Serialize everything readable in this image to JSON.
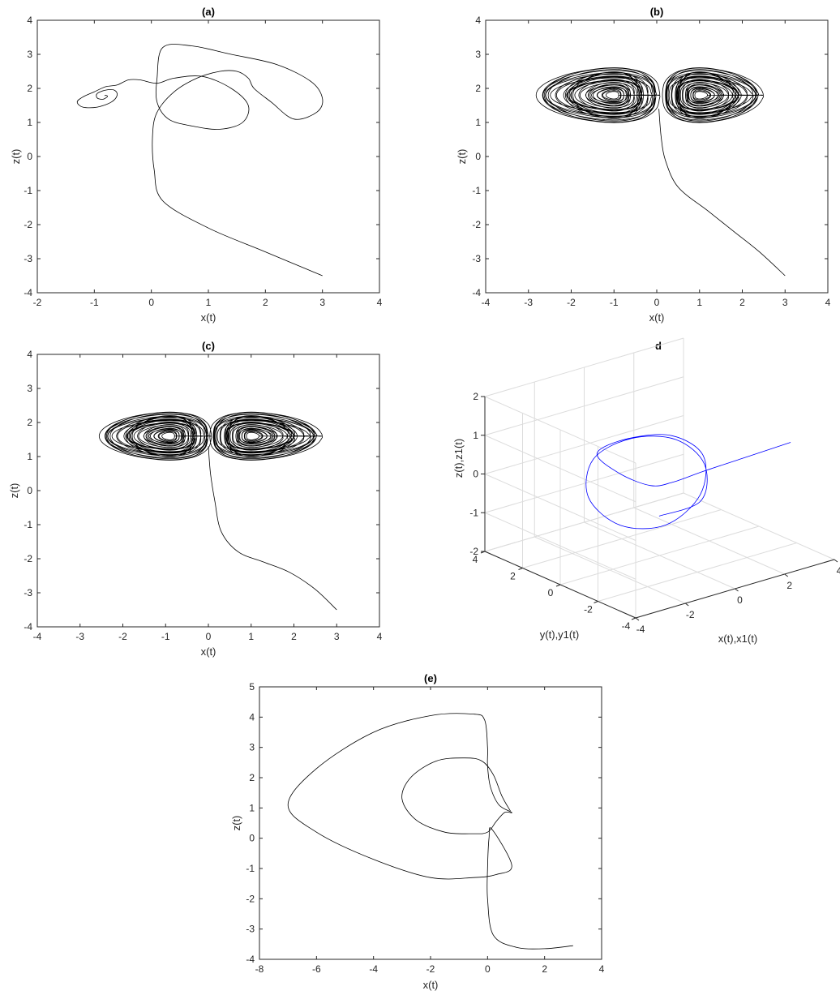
{
  "chart_data": [
    {
      "id": "a",
      "type": "line",
      "title": "(a)",
      "xlabel": "x(t)",
      "ylabel": "z(t)",
      "xlim": [
        -2,
        4
      ],
      "ylim": [
        -4,
        4
      ],
      "xticks": [
        "-2",
        "-1",
        "0",
        "1",
        "2",
        "3",
        "4"
      ],
      "yticks": [
        "-4",
        "-3",
        "-2",
        "-1",
        "0",
        "1",
        "2",
        "3",
        "4"
      ],
      "grid": false,
      "series": [
        {
          "color": "#000000",
          "trajectory": "spiral to focus",
          "x": [
            3.0,
            2.0,
            1.0,
            0.2,
            0.05,
            0.02,
            0.1,
            0.4,
            0.8,
            1.2,
            1.5,
            1.7,
            1.8,
            2.1,
            2.5,
            2.9,
            3.0,
            2.8,
            2.2,
            1.4,
            0.7,
            0.2,
            0.1,
            0.1,
            0.3,
            0.7,
            1.2,
            1.6,
            1.7,
            1.4,
            0.9,
            0.4,
            0.1,
            -0.2,
            -0.4,
            -0.6,
            -0.8,
            -1.0,
            -1.2,
            -1.3,
            -1.2,
            -0.95,
            -0.7,
            -0.6,
            -0.65,
            -0.8,
            -0.95,
            -0.95,
            -0.85,
            -0.77,
            -0.8,
            -0.82
          ],
          "y": [
            -3.5,
            -2.8,
            -2.1,
            -1.3,
            -0.4,
            0.6,
            1.3,
            1.9,
            2.3,
            2.5,
            2.5,
            2.3,
            2.0,
            1.6,
            1.1,
            1.3,
            1.7,
            2.2,
            2.7,
            3.0,
            3.25,
            3.2,
            2.3,
            1.6,
            1.1,
            0.9,
            0.8,
            1.0,
            1.5,
            2.0,
            2.35,
            2.3,
            2.15,
            2.25,
            2.25,
            2.1,
            2.05,
            1.9,
            1.75,
            1.6,
            1.45,
            1.45,
            1.6,
            1.8,
            1.95,
            1.95,
            1.85,
            1.72,
            1.68,
            1.76,
            1.8,
            1.78
          ]
        }
      ]
    },
    {
      "id": "b",
      "type": "line",
      "title": "(b)",
      "xlabel": "x(t)",
      "ylabel": "z(t)",
      "xlim": [
        -4,
        4
      ],
      "ylim": [
        -4,
        4
      ],
      "xticks": [
        "-4",
        "-3",
        "-2",
        "-1",
        "0",
        "1",
        "2",
        "3",
        "4"
      ],
      "yticks": [
        "-4",
        "-3",
        "-2",
        "-1",
        "0",
        "1",
        "2",
        "3",
        "4"
      ],
      "grid": false,
      "series": [
        {
          "color": "#000000",
          "trajectory": "double-scroll attractor",
          "x": [
            3.0,
            2.4,
            1.8,
            1.2,
            0.5,
            0.2,
            0.1,
            0.05
          ],
          "y": [
            -3.5,
            -2.8,
            -2.2,
            -1.6,
            -0.9,
            -0.1,
            0.6,
            1.4
          ],
          "lobes": [
            {
              "cx": -1.0,
              "cy": 1.8,
              "rx_min": 0.3,
              "rx_max": 3.2,
              "ry_min": 0.2,
              "ry_max": 1.6
            },
            {
              "cx": 1.0,
              "cy": 1.8,
              "rx_min": 0.3,
              "rx_max": 2.6,
              "ry_min": 0.2,
              "ry_max": 1.6
            }
          ]
        }
      ]
    },
    {
      "id": "c",
      "type": "line",
      "title": "(c)",
      "xlabel": "x(t)",
      "ylabel": "z(t)",
      "xlim": [
        -4,
        4
      ],
      "ylim": [
        -4,
        4
      ],
      "xticks": [
        "-4",
        "-3",
        "-2",
        "-1",
        "0",
        "1",
        "2",
        "3",
        "4"
      ],
      "yticks": [
        "-4",
        "-3",
        "-2",
        "-1",
        "0",
        "1",
        "2",
        "3",
        "4"
      ],
      "grid": false,
      "series": [
        {
          "color": "#000000",
          "trajectory": "figure-eight attractor",
          "x": [
            3.0,
            2.5,
            1.9,
            1.3,
            0.7,
            0.3,
            0.15,
            0.05,
            0.0
          ],
          "y": [
            -3.5,
            -2.9,
            -2.4,
            -2.1,
            -1.8,
            -1.2,
            -0.3,
            0.5,
            1.3
          ],
          "lobes": [
            {
              "cx": -0.9,
              "cy": 1.6,
              "rx_min": 0.3,
              "rx_max": 2.9,
              "ry_min": 0.2,
              "ry_max": 1.4
            },
            {
              "cx": 1.0,
              "cy": 1.6,
              "rx_min": 0.3,
              "rx_max": 2.9,
              "ry_min": 0.2,
              "ry_max": 1.4
            }
          ]
        }
      ]
    },
    {
      "id": "d",
      "type": "line3d",
      "title": "d",
      "xlabel": "x(t),x1(t)",
      "ylabel": "y(t),y1(t)",
      "zlabel": "z(t),z1(t)",
      "xlim": [
        -4,
        4
      ],
      "ylim": [
        -4,
        4
      ],
      "zlim": [
        -2,
        2
      ],
      "xticks": [
        "-4",
        "-2",
        "0",
        "2",
        "4"
      ],
      "yticks": [
        "-4",
        "-2",
        "0",
        "2",
        "4"
      ],
      "zticks": [
        "-2",
        "-1",
        "0",
        "1",
        "2"
      ],
      "grid": true,
      "series": [
        {
          "color": "#0000ff",
          "trajectory": "3D attractor",
          "x": [
            3.0,
            2.0,
            1.0,
            0.3,
            0.0,
            -0.5,
            -1.0,
            -0.5,
            0.5,
            1.0,
            0.5,
            -0.5,
            -1.2,
            -1.5,
            -1.0,
            0.0,
            0.8,
            1.2,
            0.6,
            -0.4
          ],
          "y": [
            -3.0,
            -2.0,
            -1.0,
            -0.3,
            0.5,
            1.5,
            2.0,
            1.0,
            0.0,
            -1.0,
            -1.5,
            -1.0,
            0.5,
            1.8,
            2.2,
            1.5,
            0.2,
            -0.8,
            -1.4,
            -0.5
          ],
          "z": [
            1.0,
            0.6,
            0.2,
            -0.1,
            -0.3,
            -0.1,
            0.4,
            0.9,
            1.0,
            0.6,
            -0.2,
            -0.9,
            -1.1,
            -0.6,
            0.2,
            0.7,
            0.8,
            0.3,
            -0.4,
            -0.8
          ]
        }
      ]
    },
    {
      "id": "e",
      "type": "line",
      "title": "(e)",
      "xlabel": "x(t)",
      "ylabel": "z(t)",
      "xlim": [
        -8,
        4
      ],
      "ylim": [
        -4,
        5
      ],
      "xticks": [
        "-8",
        "-6",
        "-4",
        "-2",
        "0",
        "2",
        "4"
      ],
      "yticks": [
        "-4",
        "-3",
        "-2",
        "-1",
        "0",
        "1",
        "2",
        "3",
        "4",
        "5"
      ],
      "grid": false,
      "series": [
        {
          "color": "#000000",
          "trajectory": "limit cycle with transient",
          "x": [
            3.0,
            2.0,
            1.0,
            0.2,
            0.0,
            0.0,
            0.05,
            0.15,
            0.85,
            0.3,
            -0.5,
            -2.0,
            -4.0,
            -6.0,
            -7.0,
            -6.0,
            -4.0,
            -2.0,
            -0.5,
            -0.1,
            0.0,
            0.0,
            0.1,
            0.4,
            0.85,
            0.6,
            0.3,
            0.0,
            -0.5,
            -1.5,
            -2.5,
            -3.0,
            -2.7,
            -1.8,
            -0.8,
            -0.2,
            0.2,
            0.5,
            0.8
          ],
          "y": [
            -3.55,
            -3.65,
            -3.6,
            -3.2,
            -2.0,
            -1.0,
            0.0,
            0.3,
            -0.9,
            -1.2,
            -1.3,
            -1.3,
            -0.7,
            0.2,
            1.1,
            2.3,
            3.5,
            4.05,
            4.1,
            3.9,
            3.0,
            2.4,
            1.7,
            1.1,
            0.85,
            0.85,
            0.55,
            0.2,
            0.15,
            0.2,
            0.6,
            1.3,
            2.0,
            2.55,
            2.65,
            2.55,
            2.1,
            1.4,
            0.9
          ]
        }
      ]
    }
  ]
}
